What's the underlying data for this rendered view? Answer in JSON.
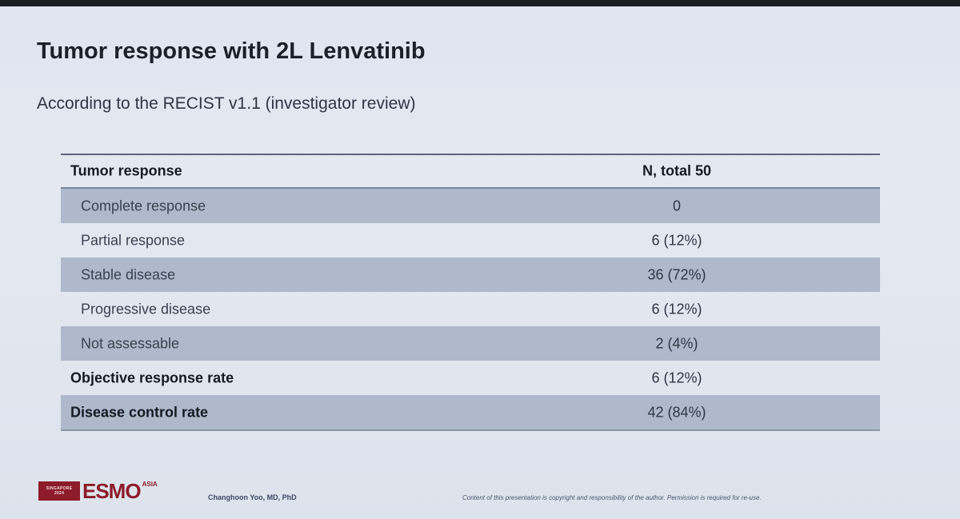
{
  "slide": {
    "title": "Tumor response with 2L Lenvatinib",
    "subtitle": "According to the RECIST v1.1 (investigator review)"
  },
  "table": {
    "headers": {
      "label": "Tumor response",
      "value": "N, total 50"
    },
    "rows": [
      {
        "label": "Complete response",
        "value": "0"
      },
      {
        "label": "Partial response",
        "value": "6 (12%)"
      },
      {
        "label": "Stable disease",
        "value": "36 (72%)"
      },
      {
        "label": "Progressive disease",
        "value": "6 (12%)"
      },
      {
        "label": "Not assessable",
        "value": "2 (4%)"
      },
      {
        "label": "Objective response rate",
        "value": "6 (12%)"
      },
      {
        "label": "Disease control rate",
        "value": "42 (84%)"
      }
    ]
  },
  "footer": {
    "logo": {
      "box_line1": "SINGAPORE",
      "box_line2": "2024",
      "word": "ESMO",
      "region": "ASIA"
    },
    "author": "Changhoon Yoo, MD, PhD",
    "copyright": "Content of this presentation is copyright and responsibility of the author. Permission is required for re-use."
  },
  "colors": {
    "background": "#dfe5ef",
    "row_shade": "#aeb9cb",
    "brand_red": "#8e1b2a"
  }
}
